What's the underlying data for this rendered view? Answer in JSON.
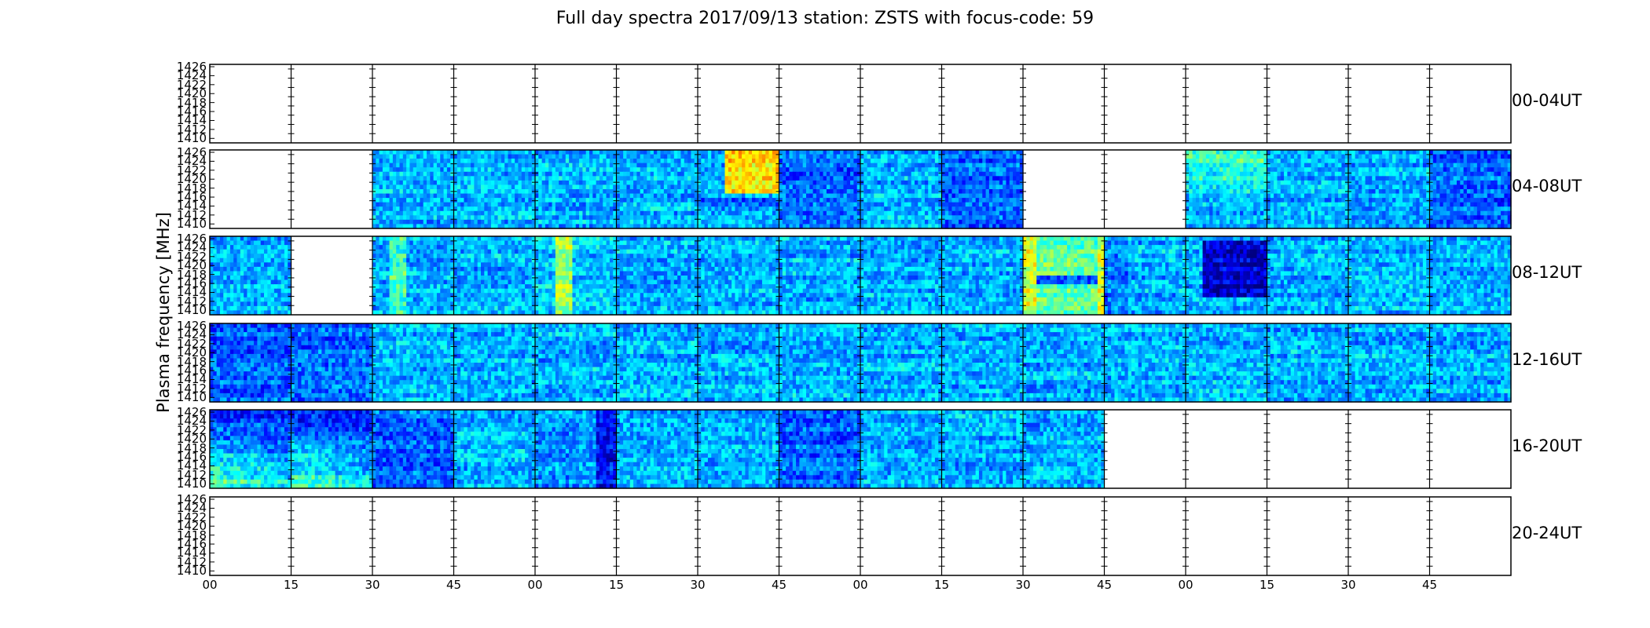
{
  "chart_data": {
    "type": "heatmap",
    "title": "Full day spectra 2017/09/13 station: ZSTS with focus-code: 59",
    "ylabel": "Plasma frequency [MHz]",
    "xlabel": "",
    "y_ticks": [
      "1426",
      "1424",
      "1422",
      "1420",
      "1418",
      "1416",
      "1414",
      "1412",
      "1410"
    ],
    "x_ticks": [
      "00",
      "15",
      "30",
      "45",
      "00",
      "15",
      "30",
      "45",
      "00",
      "15",
      "30",
      "45",
      "00",
      "15",
      "30",
      "45"
    ],
    "ylim": [
      1410,
      1427
    ],
    "colormap": "jet",
    "panels_per_row": 16,
    "rows": [
      {
        "label": "00-04UT",
        "panels": [
          "empty",
          "empty",
          "empty",
          "empty",
          "empty",
          "empty",
          "empty",
          "empty",
          "empty",
          "empty",
          "empty",
          "empty",
          "empty",
          "empty",
          "empty",
          "empty"
        ]
      },
      {
        "label": "04-08UT",
        "panels": [
          "empty",
          "empty",
          "normal",
          "normal",
          "normal",
          "normal",
          "burst-upper-right",
          "dark",
          "normal",
          "dark",
          "empty",
          "empty",
          "bright-upper",
          "normal",
          "normal",
          "dark"
        ]
      },
      {
        "label": "08-12UT",
        "panels": [
          "normal",
          "empty",
          "bright-left",
          "normal",
          "bright-band",
          "normal",
          "normal",
          "normal",
          "normal",
          "normal",
          "bright-strong",
          "dark-left",
          "dark-blob",
          "normal",
          "normal",
          "normal"
        ]
      },
      {
        "label": "12-16UT",
        "panels": [
          "dark",
          "dark",
          "normal",
          "normal",
          "normal",
          "normal",
          "normal",
          "normal",
          "normal",
          "normal",
          "normal",
          "normal",
          "normal",
          "normal",
          "normal",
          "normal"
        ]
      },
      {
        "label": "16-20UT",
        "panels": [
          "dark-gradient",
          "dark-gradient",
          "dark",
          "normal",
          "dark-right",
          "normal",
          "normal",
          "dark",
          "normal",
          "normal",
          "normal",
          "empty",
          "empty",
          "empty",
          "empty",
          "empty"
        ]
      },
      {
        "label": "20-24UT",
        "panels": [
          "empty",
          "empty",
          "empty",
          "empty",
          "empty",
          "empty",
          "empty",
          "empty",
          "empty",
          "empty",
          "empty",
          "empty",
          "empty",
          "empty",
          "empty",
          "empty"
        ]
      }
    ],
    "grid": false,
    "legend": "none"
  }
}
